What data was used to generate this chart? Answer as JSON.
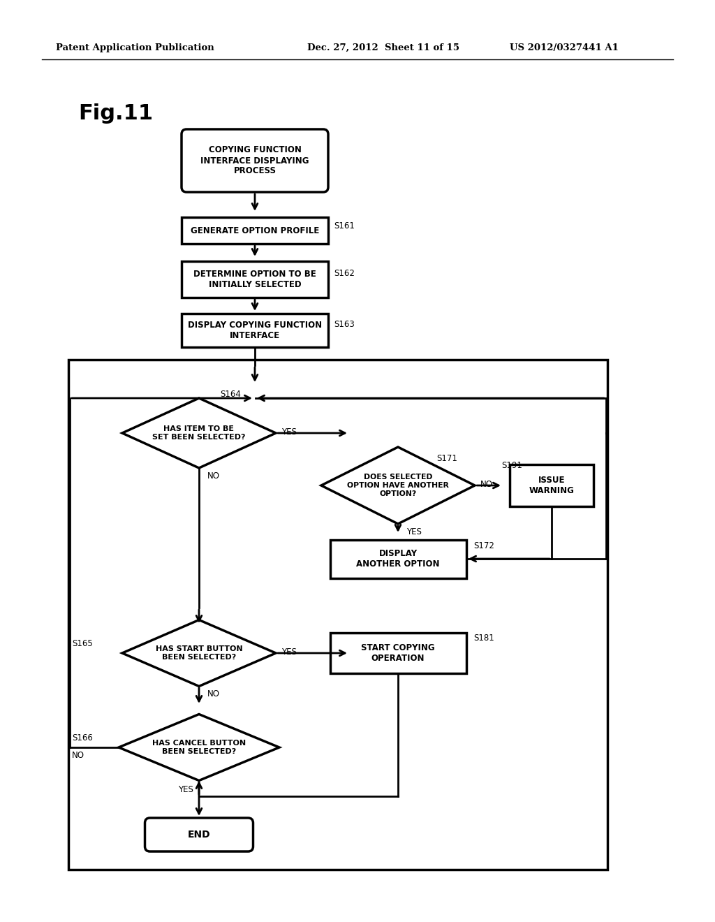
{
  "title": "Fig.11",
  "header_left": "Patent Application Publication",
  "header_mid": "Dec. 27, 2012  Sheet 11 of 15",
  "header_right": "US 2012/0327441 A1",
  "bg_color": "#ffffff",
  "line_color": "#000000"
}
